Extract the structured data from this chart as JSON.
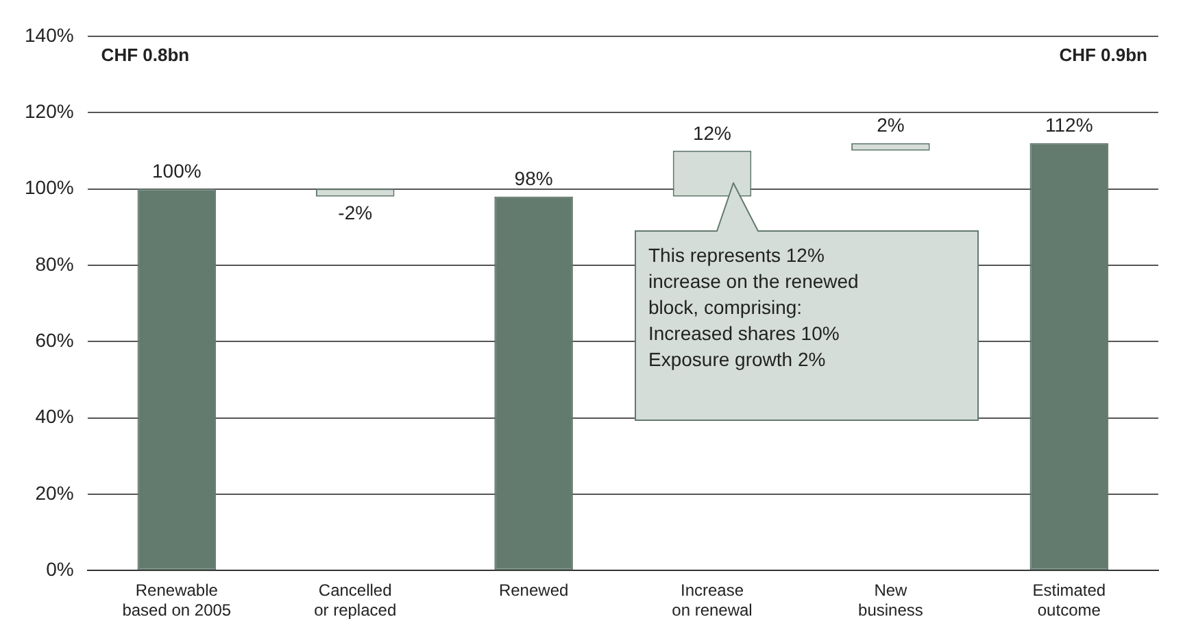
{
  "chart_data": {
    "type": "bar",
    "categories": [
      "Renewable\nbased on 2005",
      "Cancelled\nor replaced",
      "Renewed",
      "Increase\non renewal",
      "New\nbusiness",
      "Estimated\noutcome"
    ],
    "values": [
      100,
      -2,
      98,
      12,
      2,
      112
    ],
    "base": [
      0,
      100,
      0,
      98,
      110,
      0
    ],
    "colors": [
      "#637a6e",
      "#d4ddd8",
      "#637a6e",
      "#d4ddd8",
      "#d4ddd8",
      "#637a6e"
    ],
    "value_labels": [
      "100%",
      "-2%",
      "98%",
      "12%",
      "2%",
      "112%"
    ],
    "ylim": [
      0,
      140
    ],
    "yticks": [
      {
        "value": 0,
        "label": "0%"
      },
      {
        "value": 20,
        "label": "20%"
      },
      {
        "value": 40,
        "label": "40%"
      },
      {
        "value": 60,
        "label": "60%"
      },
      {
        "value": 80,
        "label": "80%"
      },
      {
        "value": 100,
        "label": "100%"
      },
      {
        "value": 120,
        "label": "120%"
      },
      {
        "value": 140,
        "label": "140%"
      }
    ],
    "grid": "y",
    "annotations": [
      "CHF 0.8bn",
      "CHF 0.9bn",
      "This represents 12%\nincrease on the renewed\nblock, comprising:\nIncreased shares 10%\nExposure growth 2%"
    ]
  }
}
